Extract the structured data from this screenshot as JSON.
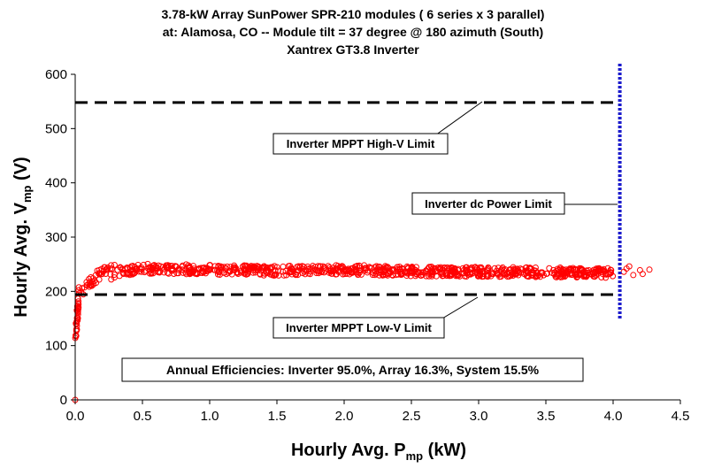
{
  "title_lines": [
    "3.78-kW Array SunPower SPR-210 modules ( 6 series x  3 parallel)",
    "at:   Alamosa, CO -- Module tilt =  37 degree  @  180 azimuth (South)",
    "Xantrex GT3.8 Inverter"
  ],
  "chart_data": {
    "type": "scatter",
    "xlabel": {
      "main": "Hourly Avg. P",
      "sub": "mp",
      "unit": " (kW)"
    },
    "ylabel": {
      "main": "Hourly Avg. V",
      "sub": "mp",
      "unit": " (V)"
    },
    "xlim": [
      0,
      4.5
    ],
    "ylim": [
      0,
      600
    ],
    "x_ticks": [
      "0.0",
      "0.5",
      "1.0",
      "1.5",
      "2.0",
      "2.5",
      "3.0",
      "3.5",
      "4.0",
      "4.5"
    ],
    "y_ticks": [
      "0",
      "100",
      "200",
      "300",
      "400",
      "500",
      "600"
    ],
    "grid": false,
    "marker_color": "#ff0000",
    "reference_lines": [
      {
        "name": "high_v",
        "orientation": "horizontal",
        "y": 548,
        "x_range": [
          0.0,
          4.0
        ],
        "style": "dashed",
        "color": "#000000"
      },
      {
        "name": "low_v",
        "orientation": "horizontal",
        "y": 194,
        "x_range": [
          0.0,
          4.0
        ],
        "style": "dashed",
        "color": "#000000"
      },
      {
        "name": "dc_power",
        "orientation": "vertical",
        "x": 4.05,
        "y_range": [
          150,
          620
        ],
        "style": "dotted",
        "color": "#1a1acc"
      }
    ],
    "series_envelope": [
      {
        "x": 0.0,
        "y": 0
      },
      {
        "x": 0.0,
        "y": 110
      },
      {
        "x": 0.02,
        "y": 170
      },
      {
        "x": 0.05,
        "y": 205
      },
      {
        "x": 0.1,
        "y": 220
      },
      {
        "x": 0.2,
        "y": 232
      },
      {
        "x": 0.5,
        "y": 242
      },
      {
        "x": 1.0,
        "y": 240
      },
      {
        "x": 1.5,
        "y": 238
      },
      {
        "x": 2.0,
        "y": 240
      },
      {
        "x": 2.5,
        "y": 237
      },
      {
        "x": 3.0,
        "y": 236
      },
      {
        "x": 3.5,
        "y": 235
      },
      {
        "x": 4.0,
        "y": 234
      },
      {
        "x": 4.15,
        "y": 240
      },
      {
        "x": 4.25,
        "y": 238
      }
    ],
    "annotations": {
      "high_v_label": "Inverter MPPT High-V Limit",
      "dc_power_label": "Inverter dc Power Limit",
      "low_v_label": "Inverter MPPT Low-V Limit",
      "efficiency_label": "Annual Efficiencies: Inverter 95.0%, Array 16.3%, System 15.5%"
    }
  }
}
